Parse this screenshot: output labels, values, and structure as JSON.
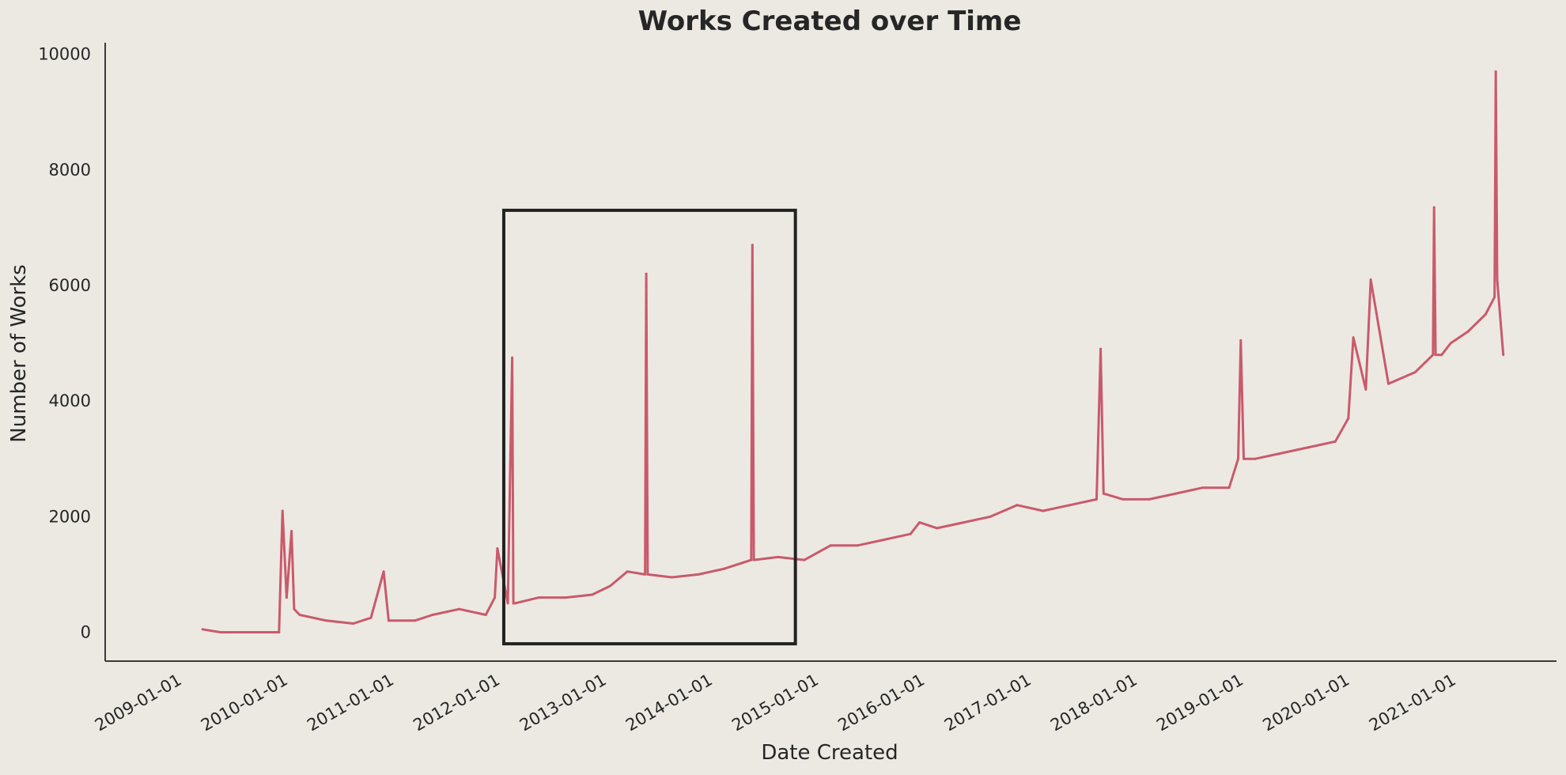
{
  "chart_data": {
    "type": "line",
    "title": "Works Created over Time",
    "xlabel": "Date Created",
    "ylabel": "Number of Works",
    "x_ticks": [
      "2009-01-01",
      "2010-01-01",
      "2011-01-01",
      "2012-01-01",
      "2013-01-01",
      "2014-01-01",
      "2015-01-01",
      "2016-01-01",
      "2017-01-01",
      "2018-01-01",
      "2019-01-01",
      "2020-01-01",
      "2021-01-01"
    ],
    "y_ticks": [
      "0",
      "2000",
      "4000",
      "6000",
      "8000",
      "10000"
    ],
    "xlim": [
      "2008-05-01",
      "2021-12-31"
    ],
    "ylim": [
      -500,
      10200
    ],
    "grid": false,
    "series": [
      {
        "color": "#c95a6b",
        "x": [
          "2009-04-01",
          "2009-06-01",
          "2009-09-01",
          "2009-12-01",
          "2009-12-20",
          "2010-01-01",
          "2010-01-15",
          "2010-02-01",
          "2010-02-10",
          "2010-03-01",
          "2010-06-01",
          "2010-09-01",
          "2010-11-01",
          "2010-12-15",
          "2011-01-01",
          "2011-04-01",
          "2011-06-01",
          "2011-09-01",
          "2011-12-01",
          "2012-01-01",
          "2012-01-10",
          "2012-02-15",
          "2012-03-01",
          "2012-03-05",
          "2012-03-10",
          "2012-06-01",
          "2012-09-01",
          "2012-12-01",
          "2013-02-01",
          "2013-04-01",
          "2013-06-01",
          "2013-06-05",
          "2013-06-10",
          "2013-09-01",
          "2013-12-01",
          "2014-03-01",
          "2014-05-01",
          "2014-06-01",
          "2014-06-05",
          "2014-06-10",
          "2014-09-01",
          "2014-12-01",
          "2015-03-01",
          "2015-06-01",
          "2015-09-01",
          "2015-12-01",
          "2016-01-01",
          "2016-03-01",
          "2016-06-01",
          "2016-09-01",
          "2016-12-01",
          "2017-03-01",
          "2017-06-01",
          "2017-09-01",
          "2017-09-15",
          "2017-09-25",
          "2017-12-01",
          "2018-03-01",
          "2018-06-01",
          "2018-09-01",
          "2018-12-01",
          "2019-01-01",
          "2019-01-10",
          "2019-01-20",
          "2019-03-01",
          "2019-06-01",
          "2019-09-01",
          "2019-12-01",
          "2020-01-15",
          "2020-02-01",
          "2020-03-15",
          "2020-04-01",
          "2020-06-01",
          "2020-09-01",
          "2020-11-01",
          "2020-11-05",
          "2020-11-10",
          "2020-12-01",
          "2021-01-01",
          "2021-03-01",
          "2021-05-01",
          "2021-06-01",
          "2021-06-05",
          "2021-06-10",
          "2021-07-01"
        ],
        "values": [
          50,
          0,
          0,
          0,
          0,
          2100,
          600,
          1750,
          400,
          300,
          200,
          150,
          250,
          1050,
          200,
          200,
          300,
          400,
          300,
          600,
          1450,
          500,
          4750,
          500,
          500,
          600,
          600,
          650,
          800,
          1050,
          1000,
          6200,
          1000,
          950,
          1000,
          1100,
          1200,
          1250,
          6700,
          1250,
          1300,
          1250,
          1500,
          1500,
          1600,
          1700,
          1900,
          1800,
          1900,
          2000,
          2200,
          2100,
          2200,
          2300,
          4900,
          2400,
          2300,
          2300,
          2400,
          2500,
          2500,
          3000,
          5050,
          3000,
          3000,
          3100,
          3200,
          3300,
          3700,
          5100,
          4200,
          6100,
          4300,
          4500,
          4800,
          7350,
          4800,
          4800,
          5000,
          5200,
          5500,
          5800,
          9700,
          6100,
          4800
        ]
      }
    ]
  },
  "annotation": {
    "type": "rectangle",
    "x_range": [
      "2012-02-01",
      "2014-10-31"
    ],
    "y_range": [
      -200,
      7300
    ],
    "color": "#222222"
  }
}
